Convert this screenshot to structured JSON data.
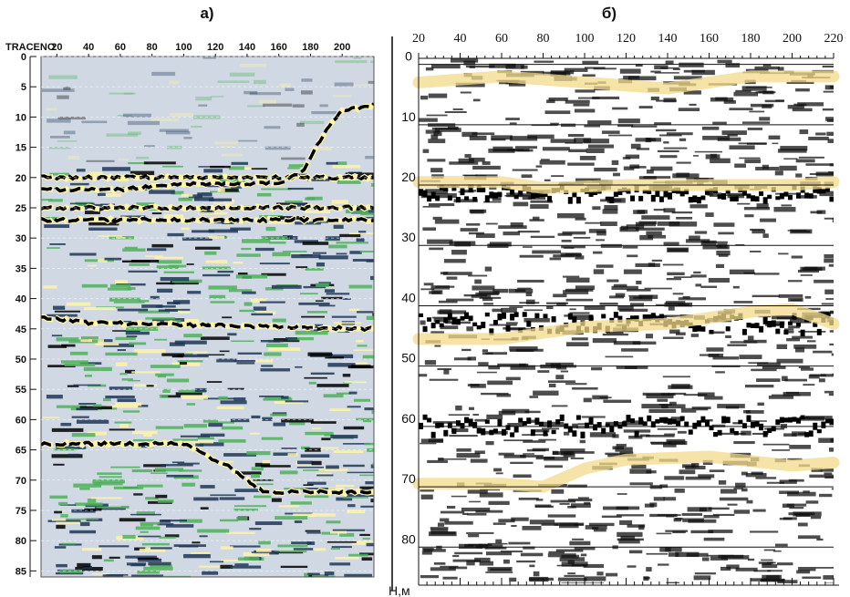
{
  "chart_data": [
    {
      "type": "heatmap",
      "panel_label": "а)",
      "trace_axis_label": "TRACENO",
      "x_ticks": [
        20,
        40,
        60,
        80,
        100,
        120,
        140,
        160,
        180,
        200
      ],
      "xlim": [
        10,
        220
      ],
      "y_ticks": [
        0,
        5,
        10,
        15,
        20,
        25,
        30,
        35,
        40,
        45,
        50,
        55,
        60,
        65,
        70,
        75,
        80,
        85
      ],
      "ylim": [
        0,
        86
      ],
      "colors": {
        "background": "#cfd8e3",
        "strong": "#000000",
        "mid": "#1d3656",
        "green": "#4fb15a",
        "yellow": "#fff4a8"
      },
      "reflectors": [
        {
          "points": [
            [
              10,
              20
            ],
            [
              220,
              20
            ]
          ]
        },
        {
          "points": [
            [
              10,
              22
            ],
            [
              60,
              22
            ],
            [
              100,
              21
            ],
            [
              160,
              21
            ],
            [
              175,
              19
            ],
            [
              190,
              12
            ],
            [
              200,
              9
            ],
            [
              220,
              8
            ]
          ]
        },
        {
          "points": [
            [
              10,
              25
            ],
            [
              220,
              25
            ]
          ]
        },
        {
          "points": [
            [
              10,
              27
            ],
            [
              220,
              27
            ]
          ]
        },
        {
          "points": [
            [
              10,
              43
            ],
            [
              40,
              44
            ],
            [
              220,
              45
            ]
          ]
        },
        {
          "points": [
            [
              100,
              64
            ],
            [
              130,
              68
            ],
            [
              150,
              72
            ]
          ]
        }
      ]
    },
    {
      "type": "heatmap",
      "panel_label": "б)",
      "x_ticks": [
        20,
        40,
        60,
        80,
        100,
        120,
        140,
        160,
        180,
        200,
        220
      ],
      "xlim": [
        20,
        220
      ],
      "y_ticks": [
        0,
        10,
        20,
        30,
        40,
        50,
        60,
        70,
        80
      ],
      "ylim": [
        -1,
        86
      ],
      "y_unit_label": "H,м",
      "horizons": [
        {
          "color": "#f2d98a",
          "points": [
            [
              20,
              3
            ],
            [
              60,
              2
            ],
            [
              100,
              3
            ],
            [
              140,
              4
            ],
            [
              180,
              2
            ],
            [
              220,
              2
            ]
          ]
        },
        {
          "color": "#f2d98a",
          "points": [
            [
              20,
              19.5
            ],
            [
              60,
              19.5
            ],
            [
              80,
              20.5
            ],
            [
              120,
              20
            ],
            [
              160,
              20
            ],
            [
              200,
              20
            ],
            [
              220,
              19.5
            ]
          ]
        },
        {
          "color": "#f2d98a",
          "points": [
            [
              20,
              45.5
            ],
            [
              60,
              45.5
            ],
            [
              80,
              44.5
            ],
            [
              100,
              43.5
            ],
            [
              140,
              43
            ],
            [
              180,
              41
            ],
            [
              200,
              40.5
            ],
            [
              220,
              43
            ]
          ]
        },
        {
          "color": "#f2d98a",
          "points": [
            [
              20,
              69.5
            ],
            [
              60,
              69.5
            ],
            [
              80,
              70
            ],
            [
              100,
              67
            ],
            [
              120,
              65.5
            ],
            [
              160,
              65
            ],
            [
              200,
              66.5
            ],
            [
              220,
              66
            ]
          ]
        }
      ]
    }
  ]
}
